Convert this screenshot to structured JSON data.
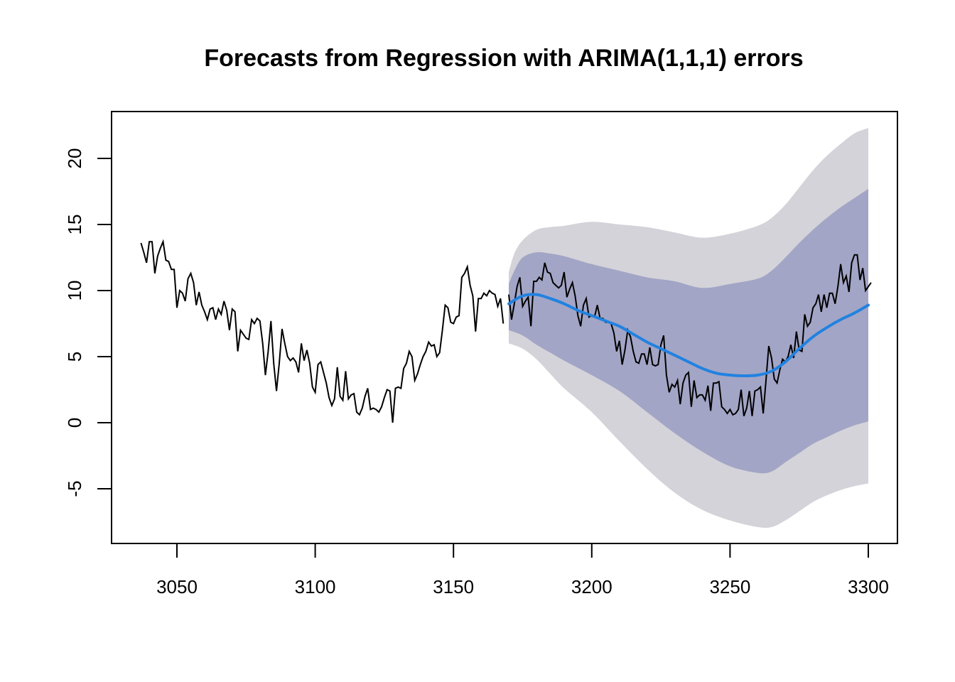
{
  "chart_data": {
    "type": "line",
    "title": "Forecasts from Regression with ARIMA(1,1,1) errors",
    "xlabel": "",
    "ylabel": "",
    "xlim": [
      3032.5,
      3304.5
    ],
    "ylim": [
      -9,
      23
    ],
    "grid": false,
    "legend": "none",
    "x_ticks": [
      3050,
      3100,
      3150,
      3200,
      3250,
      3300
    ],
    "x_tick_labels": [
      "3050",
      "3100",
      "3150",
      "3200",
      "3250",
      "3300"
    ],
    "y_ticks": [
      -5,
      0,
      5,
      10,
      15,
      20
    ],
    "y_tick_labels": [
      "-5",
      "0",
      "5",
      "10",
      "15",
      "20"
    ],
    "colors": {
      "history": "#000000",
      "actuals": "#000000",
      "forecast_mean": "#2182E0",
      "band_80": "#A3A5C6",
      "band_95": "#D3D3D9",
      "axis": "#000000"
    },
    "series": [
      {
        "name": "history",
        "x_start": 3037,
        "values": [
          13.6,
          12.9,
          12.1,
          13.7,
          13.7,
          11.3,
          12.6,
          13.2,
          13.7,
          12.3,
          12.2,
          11.6,
          11.6,
          8.7,
          10.0,
          9.8,
          9.2,
          10.9,
          11.3,
          10.6,
          8.9,
          9.9,
          8.9,
          8.4,
          7.8,
          8.6,
          8.7,
          7.8,
          8.6,
          8.2,
          9.2,
          8.5,
          7.0,
          8.6,
          8.4,
          5.4,
          7.0,
          6.7,
          6.4,
          6.3,
          7.8,
          7.5,
          7.9,
          7.7,
          6.0,
          3.6,
          5.4,
          7.7,
          4.5,
          2.4,
          4.5,
          7.1,
          6.0,
          5.0,
          4.7,
          4.9,
          4.6,
          3.8,
          6.0,
          4.7,
          5.5,
          4.5,
          2.7,
          2.3,
          4.4,
          4.6,
          3.8,
          3.0,
          1.9,
          1.3,
          1.8,
          4.2,
          2.0,
          1.7,
          3.9,
          1.8,
          2.1,
          2.2,
          0.8,
          0.6,
          1.1,
          2.0,
          2.6,
          1.0,
          1.1,
          1.0,
          0.8,
          1.2,
          1.9,
          2.5,
          2.4,
          0.0,
          2.6,
          2.7,
          2.6,
          4.1,
          4.5,
          5.4,
          5.0,
          3.2,
          3.7,
          4.4,
          5.0,
          5.4,
          6.1,
          5.8,
          5.9,
          5.0,
          5.3,
          7.0,
          8.9,
          8.7,
          7.6,
          7.5,
          8.0,
          8.1,
          11.0,
          11.3,
          11.8,
          10.4,
          9.6,
          6.9,
          9.4,
          9.4,
          9.8,
          9.6,
          10.0,
          9.8,
          9.7,
          8.8,
          9.4,
          7.5
        ]
      },
      {
        "name": "actuals",
        "x_start": 3170,
        "values": [
          9.7,
          7.8,
          9.0,
          10.3,
          11.0,
          8.8,
          9.2,
          9.5,
          7.3,
          10.7,
          10.7,
          11.0,
          10.8,
          12.1,
          11.4,
          11.3,
          10.6,
          10.4,
          10.2,
          10.4,
          11.4,
          9.5,
          10.1,
          10.6,
          9.6,
          8.1,
          7.3,
          8.9,
          9.4,
          8.0,
          8.1,
          8.0,
          8.9,
          7.9,
          7.9,
          7.6,
          7.6,
          7.5,
          6.8,
          5.4,
          6.2,
          4.4,
          5.5,
          7.0,
          6.5,
          5.4,
          4.6,
          4.5,
          5.2,
          5.2,
          4.4,
          5.7,
          4.4,
          4.3,
          4.4,
          5.9,
          6.6,
          3.6,
          2.3,
          2.9,
          2.7,
          3.2,
          1.4,
          3.0,
          3.6,
          3.8,
          1.2,
          3.2,
          1.9,
          2.1,
          2.1,
          1.7,
          2.8,
          0.9,
          3.0,
          3.0,
          3.1,
          1.2,
          1.0,
          0.7,
          1.0,
          0.6,
          0.7,
          1.0,
          2.5,
          0.5,
          1.1,
          2.4,
          0.5,
          2.4,
          2.5,
          2.7,
          0.7,
          3.2,
          5.8,
          4.9,
          3.3,
          3.0,
          4.0,
          4.8,
          4.6,
          5.0,
          5.9,
          4.9,
          6.9,
          5.5,
          5.4,
          8.2,
          7.3,
          7.6,
          8.7,
          9.0,
          9.7,
          8.4,
          9.7,
          8.7,
          9.8,
          9.8,
          9.0,
          10.3,
          12.0,
          10.6,
          11.1,
          9.9,
          12.1,
          12.7,
          12.7,
          10.8,
          11.7,
          10.0,
          10.3,
          10.6
        ]
      },
      {
        "name": "forecast_mean",
        "x": [
          3170,
          3175,
          3180,
          3185,
          3190,
          3195,
          3200,
          3205,
          3210,
          3215,
          3220,
          3225,
          3230,
          3235,
          3240,
          3245,
          3250,
          3255,
          3260,
          3265,
          3270,
          3275,
          3280,
          3285,
          3290,
          3295,
          3300
        ],
        "values": [
          9.0,
          9.6,
          9.7,
          9.4,
          9.0,
          8.5,
          8.1,
          7.7,
          7.3,
          6.7,
          6.1,
          5.6,
          5.1,
          4.6,
          4.1,
          3.75,
          3.6,
          3.55,
          3.6,
          3.9,
          4.6,
          5.6,
          6.5,
          7.2,
          7.8,
          8.3,
          8.9
        ]
      },
      {
        "name": "upper_80",
        "x": [
          3170,
          3172,
          3175,
          3180,
          3185,
          3190,
          3200,
          3210,
          3220,
          3230,
          3240,
          3250,
          3260,
          3265,
          3270,
          3275,
          3280,
          3285,
          3290,
          3295,
          3300
        ],
        "values": [
          10.5,
          11.5,
          12.5,
          12.9,
          12.8,
          12.6,
          12.0,
          11.5,
          11.0,
          10.7,
          10.2,
          10.5,
          10.9,
          11.5,
          12.5,
          13.6,
          14.6,
          15.5,
          16.3,
          17.0,
          17.7
        ]
      },
      {
        "name": "lower_80",
        "x": [
          3170,
          3175,
          3180,
          3185,
          3190,
          3200,
          3210,
          3220,
          3230,
          3240,
          3250,
          3260,
          3265,
          3270,
          3275,
          3280,
          3285,
          3290,
          3295,
          3300
        ],
        "values": [
          7.0,
          6.6,
          5.9,
          5.3,
          4.7,
          3.6,
          2.4,
          0.8,
          -0.8,
          -2.2,
          -3.3,
          -3.8,
          -3.7,
          -3.0,
          -2.3,
          -1.6,
          -1.1,
          -0.6,
          -0.2,
          0.1
        ]
      },
      {
        "name": "upper_95",
        "x": [
          3170,
          3172,
          3175,
          3180,
          3185,
          3190,
          3200,
          3210,
          3220,
          3230,
          3240,
          3250,
          3260,
          3265,
          3270,
          3275,
          3280,
          3285,
          3290,
          3295,
          3300
        ],
        "values": [
          11.4,
          12.8,
          13.8,
          14.6,
          14.8,
          14.9,
          15.2,
          15.0,
          14.8,
          14.4,
          14.0,
          14.3,
          14.9,
          15.5,
          16.5,
          17.8,
          19.1,
          20.2,
          21.1,
          21.9,
          22.3
        ]
      },
      {
        "name": "lower_95",
        "x": [
          3170,
          3175,
          3180,
          3185,
          3190,
          3200,
          3210,
          3220,
          3230,
          3240,
          3250,
          3260,
          3265,
          3270,
          3275,
          3280,
          3285,
          3290,
          3295,
          3300
        ],
        "values": [
          6.0,
          5.6,
          4.8,
          3.7,
          2.6,
          0.8,
          -1.4,
          -3.5,
          -5.3,
          -6.6,
          -7.4,
          -7.9,
          -7.9,
          -7.4,
          -6.7,
          -6.0,
          -5.5,
          -5.1,
          -4.8,
          -4.6
        ]
      }
    ]
  }
}
